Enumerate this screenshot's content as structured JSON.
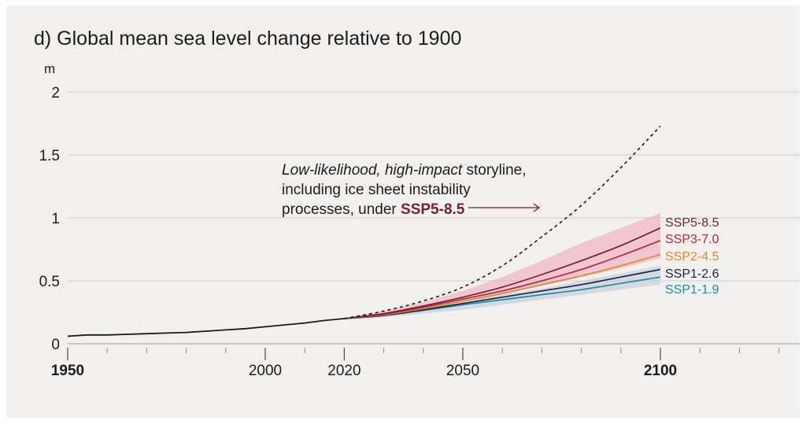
{
  "chart_data": {
    "type": "line",
    "title": "d) Global mean sea level change relative to 1900",
    "ylabel": "m",
    "xlim": [
      1950,
      2150
    ],
    "ylim": [
      0,
      2
    ],
    "yticks": [
      0,
      0.5,
      1,
      1.5,
      2
    ],
    "ytick_labels": [
      "0",
      "0.5",
      "1",
      "1.5",
      "2"
    ],
    "xticks": [
      1950,
      2000,
      2020,
      2050,
      2100
    ],
    "xtick_labels": [
      "1950",
      "2000",
      "2020",
      "2050",
      "2100"
    ],
    "xticks_bold": [
      1950,
      2100
    ],
    "minor_xticks": [
      1960,
      1970,
      1980,
      1990,
      2010,
      2030,
      2040,
      2060,
      2070,
      2080,
      2090,
      2110,
      2120,
      2130,
      2140,
      2150
    ],
    "grid": "horizontal",
    "observed": {
      "color": "#1a1a1a",
      "x": [
        1950,
        1955,
        1960,
        1965,
        1970,
        1975,
        1980,
        1985,
        1990,
        1995,
        2000,
        2005,
        2010,
        2015,
        2020
      ],
      "y": [
        0.06,
        0.07,
        0.07,
        0.075,
        0.08,
        0.085,
        0.09,
        0.1,
        0.11,
        0.12,
        0.135,
        0.15,
        0.165,
        0.185,
        0.2
      ]
    },
    "series": [
      {
        "name": "SSP5-8.5",
        "color": "#7a1e35",
        "x": [
          2020,
          2030,
          2040,
          2050,
          2060,
          2070,
          2080,
          2090,
          2100
        ],
        "y": [
          0.2,
          0.24,
          0.3,
          0.37,
          0.45,
          0.55,
          0.66,
          0.78,
          0.92
        ],
        "band_low": [
          0.2,
          0.23,
          0.27,
          0.33,
          0.39,
          0.46,
          0.53,
          0.6,
          0.68
        ],
        "band_high": [
          0.2,
          0.26,
          0.33,
          0.42,
          0.53,
          0.66,
          0.8,
          0.92,
          1.04
        ],
        "band_color": "#eeaabb"
      },
      {
        "name": "SSP3-7.0",
        "color": "#b12a44",
        "x": [
          2020,
          2030,
          2040,
          2050,
          2060,
          2070,
          2080,
          2090,
          2100
        ],
        "y": [
          0.2,
          0.235,
          0.29,
          0.355,
          0.42,
          0.5,
          0.59,
          0.7,
          0.82
        ]
      },
      {
        "name": "SSP2-4.5",
        "color": "#e08a2c",
        "x": [
          2020,
          2030,
          2040,
          2050,
          2060,
          2070,
          2080,
          2090,
          2100
        ],
        "y": [
          0.2,
          0.23,
          0.28,
          0.34,
          0.4,
          0.47,
          0.54,
          0.62,
          0.71
        ]
      },
      {
        "name": "SSP1-2.6",
        "color": "#1a2547",
        "x": [
          2020,
          2030,
          2040,
          2050,
          2060,
          2070,
          2080,
          2090,
          2100
        ],
        "y": [
          0.2,
          0.225,
          0.27,
          0.32,
          0.37,
          0.42,
          0.47,
          0.53,
          0.59
        ]
      },
      {
        "name": "SSP1-1.9",
        "color": "#1e8c9e",
        "x": [
          2020,
          2030,
          2040,
          2050,
          2060,
          2070,
          2080,
          2090,
          2100
        ],
        "y": [
          0.2,
          0.225,
          0.265,
          0.31,
          0.35,
          0.39,
          0.43,
          0.48,
          0.53
        ],
        "band_low": [
          0.2,
          0.21,
          0.24,
          0.27,
          0.31,
          0.35,
          0.39,
          0.43,
          0.47
        ],
        "band_high": [
          0.2,
          0.24,
          0.29,
          0.34,
          0.39,
          0.44,
          0.5,
          0.56,
          0.62
        ],
        "band_color": "#c2ccd8"
      }
    ],
    "storyline": {
      "color": "#1a1a1a",
      "x": [
        2020,
        2030,
        2040,
        2050,
        2060,
        2070,
        2080,
        2090,
        2100
      ],
      "y": [
        0.2,
        0.26,
        0.34,
        0.45,
        0.62,
        0.85,
        1.1,
        1.4,
        1.73
      ]
    },
    "annotation": {
      "line1_italic_a": "Low-likelihood,",
      "line1_italic_b": "high-impact",
      "line1_rest": " storyline,",
      "line2": "including ice sheet instability",
      "line3_prefix": "processes, under ",
      "line3_highlight": "SSP5-8.5",
      "highlight_color": "#7a1e35"
    }
  }
}
